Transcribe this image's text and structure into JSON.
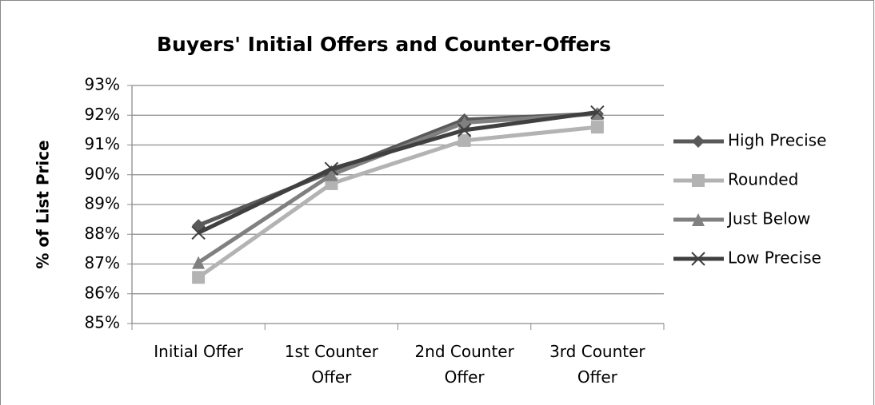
{
  "chart_data": {
    "type": "line",
    "title": "Buyers' Initial Offers and Counter-Offers",
    "y_label": "% of List Price",
    "categories": [
      "Initial Offer",
      "1st Counter Offer",
      "2nd Counter Offer",
      "3rd Counter Offer"
    ],
    "series": [
      {
        "name": "High Precise",
        "color": "#595959",
        "marker": "diamond",
        "values": [
          88.3,
          90.1,
          91.85,
          92.05
        ]
      },
      {
        "name": "Rounded",
        "color": "#b3b3b3",
        "marker": "square",
        "values": [
          86.55,
          89.7,
          91.15,
          91.6
        ]
      },
      {
        "name": "Just Below",
        "color": "#808080",
        "marker": "triangle",
        "values": [
          87.05,
          90.0,
          91.75,
          92.05
        ]
      },
      {
        "name": "Low Precise",
        "color": "#404040",
        "marker": "x",
        "values": [
          88.05,
          90.2,
          91.5,
          92.1
        ]
      }
    ],
    "ylim": [
      85,
      93
    ],
    "yticks": [
      {
        "value": 85,
        "label": "85%"
      },
      {
        "value": 86,
        "label": "86%"
      },
      {
        "value": 87,
        "label": "87%"
      },
      {
        "value": 88,
        "label": "88%"
      },
      {
        "value": 89,
        "label": "89%"
      },
      {
        "value": 90,
        "label": "90%"
      },
      {
        "value": 91,
        "label": "91%"
      },
      {
        "value": 92,
        "label": "92%"
      },
      {
        "value": 93,
        "label": "93%"
      }
    ],
    "grid": true,
    "legend": "right"
  }
}
